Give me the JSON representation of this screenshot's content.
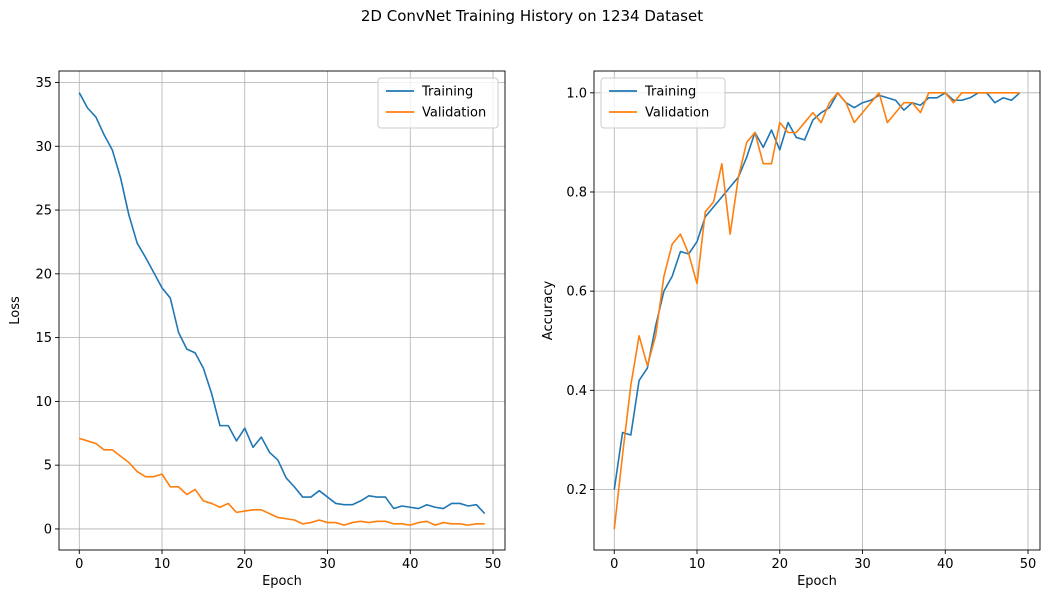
{
  "figure": {
    "title": "2D ConvNet Training History on 1234 Dataset"
  },
  "colors": {
    "training": "#1f77b4",
    "validation": "#ff7f0e",
    "grid": "#b0b0b0"
  },
  "chart_data": [
    {
      "type": "line",
      "xlabel": "Epoch",
      "ylabel": "Loss",
      "xlim": [
        -2.45,
        51.45
      ],
      "ylim": [
        -1.65,
        35.9
      ],
      "xticks": [
        0,
        10,
        20,
        30,
        40,
        50
      ],
      "yticks": [
        0,
        5,
        10,
        15,
        20,
        25,
        30,
        35
      ],
      "grid": true,
      "legend": "top-right",
      "x": [
        0,
        1,
        2,
        3,
        4,
        5,
        6,
        7,
        8,
        9,
        10,
        11,
        12,
        13,
        14,
        15,
        16,
        17,
        18,
        19,
        20,
        21,
        22,
        23,
        24,
        25,
        26,
        27,
        28,
        29,
        30,
        31,
        32,
        33,
        34,
        35,
        36,
        37,
        38,
        39,
        40,
        41,
        42,
        43,
        44,
        45,
        46,
        47,
        48,
        49
      ],
      "series": [
        {
          "name": "Training",
          "color_key": "training",
          "values": [
            34.2,
            33.0,
            32.3,
            30.9,
            29.7,
            27.5,
            24.6,
            22.4,
            21.3,
            20.1,
            18.9,
            18.1,
            15.4,
            14.1,
            13.8,
            12.6,
            10.6,
            8.1,
            8.1,
            6.9,
            7.9,
            6.4,
            7.2,
            6.0,
            5.4,
            4.0,
            3.3,
            2.5,
            2.5,
            3.0,
            2.5,
            2.0,
            1.9,
            1.9,
            2.2,
            2.6,
            2.5,
            2.5,
            1.6,
            1.8,
            1.7,
            1.6,
            1.9,
            1.7,
            1.6,
            2.0,
            2.0,
            1.8,
            1.9,
            1.2
          ]
        },
        {
          "name": "Validation",
          "color_key": "validation",
          "values": [
            7.1,
            6.9,
            6.7,
            6.2,
            6.2,
            5.7,
            5.2,
            4.5,
            4.1,
            4.1,
            4.3,
            3.3,
            3.3,
            2.7,
            3.1,
            2.2,
            2.0,
            1.7,
            2.0,
            1.3,
            1.4,
            1.5,
            1.5,
            1.2,
            0.9,
            0.8,
            0.7,
            0.4,
            0.5,
            0.7,
            0.5,
            0.5,
            0.3,
            0.5,
            0.6,
            0.5,
            0.6,
            0.6,
            0.4,
            0.4,
            0.3,
            0.5,
            0.6,
            0.3,
            0.5,
            0.4,
            0.4,
            0.3,
            0.4,
            0.4
          ]
        }
      ]
    },
    {
      "type": "line",
      "xlabel": "Epoch",
      "ylabel": "Accuracy",
      "xlim": [
        -2.45,
        51.45
      ],
      "ylim": [
        0.078,
        1.044
      ],
      "xticks": [
        0,
        10,
        20,
        30,
        40,
        50
      ],
      "yticks": [
        0.2,
        0.4,
        0.6,
        0.8,
        1.0
      ],
      "grid": true,
      "legend": "top-left",
      "x": [
        0,
        1,
        2,
        3,
        4,
        5,
        6,
        7,
        8,
        9,
        10,
        11,
        12,
        13,
        14,
        15,
        16,
        17,
        18,
        19,
        20,
        21,
        22,
        23,
        24,
        25,
        26,
        27,
        28,
        29,
        30,
        31,
        32,
        33,
        34,
        35,
        36,
        37,
        38,
        39,
        40,
        41,
        42,
        43,
        44,
        45,
        46,
        47,
        48,
        49
      ],
      "series": [
        {
          "name": "Training",
          "color_key": "training",
          "values": [
            0.2,
            0.315,
            0.31,
            0.42,
            0.445,
            0.53,
            0.6,
            0.63,
            0.68,
            0.675,
            0.7,
            0.75,
            0.77,
            0.79,
            0.81,
            0.83,
            0.87,
            0.92,
            0.89,
            0.925,
            0.885,
            0.94,
            0.91,
            0.905,
            0.945,
            0.96,
            0.97,
            1.0,
            0.98,
            0.97,
            0.98,
            0.985,
            0.995,
            0.99,
            0.985,
            0.965,
            0.98,
            0.975,
            0.99,
            0.99,
            1.0,
            0.985,
            0.985,
            0.99,
            1.0,
            1.0,
            0.98,
            0.99,
            0.985,
            1.0
          ]
        },
        {
          "name": "Validation",
          "color_key": "validation",
          "values": [
            0.12,
            0.27,
            0.41,
            0.51,
            0.45,
            0.51,
            0.63,
            0.695,
            0.715,
            0.675,
            0.615,
            0.76,
            0.78,
            0.857,
            0.715,
            0.83,
            0.9,
            0.92,
            0.857,
            0.857,
            0.94,
            0.92,
            0.92,
            0.94,
            0.96,
            0.94,
            0.98,
            1.0,
            0.98,
            0.94,
            0.96,
            0.98,
            1.0,
            0.94,
            0.96,
            0.98,
            0.98,
            0.96,
            1.0,
            1.0,
            1.0,
            0.98,
            1.0,
            1.0,
            1.0,
            1.0,
            1.0,
            1.0,
            1.0,
            1.0
          ]
        }
      ]
    }
  ]
}
